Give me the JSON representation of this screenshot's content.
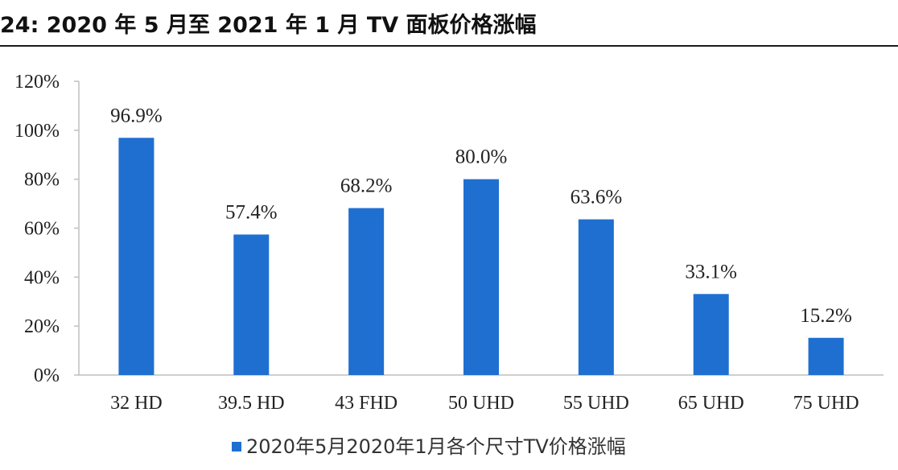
{
  "header": {
    "title": "24:  2020 年 5 月至 2021 年 1 月 TV 面板价格涨幅"
  },
  "chart_data": {
    "type": "bar",
    "title": "",
    "xlabel": "",
    "ylabel": "",
    "categories": [
      "32 HD",
      "39.5 HD",
      "43 FHD",
      "50 UHD",
      "55 UHD",
      "65 UHD",
      "75 UHD"
    ],
    "series": [
      {
        "name": "2020年5月2020年1月各个尺寸TV价格涨幅",
        "values": [
          96.9,
          57.4,
          68.2,
          80.0,
          63.6,
          33.1,
          15.2
        ],
        "data_labels": [
          "96.9%",
          "57.4%",
          "68.2%",
          "80.0%",
          "63.6%",
          "33.1%",
          "15.2%"
        ]
      }
    ],
    "ylim": [
      0,
      120
    ],
    "yticks": [
      0,
      20,
      40,
      60,
      80,
      100,
      120
    ],
    "ytick_labels": [
      "0%",
      "20%",
      "40%",
      "60%",
      "80%",
      "100%",
      "120%"
    ],
    "grid": false,
    "legend_position": "bottom",
    "bar_color": "#1f6fd1",
    "axis_color": "#bfbfbf"
  }
}
